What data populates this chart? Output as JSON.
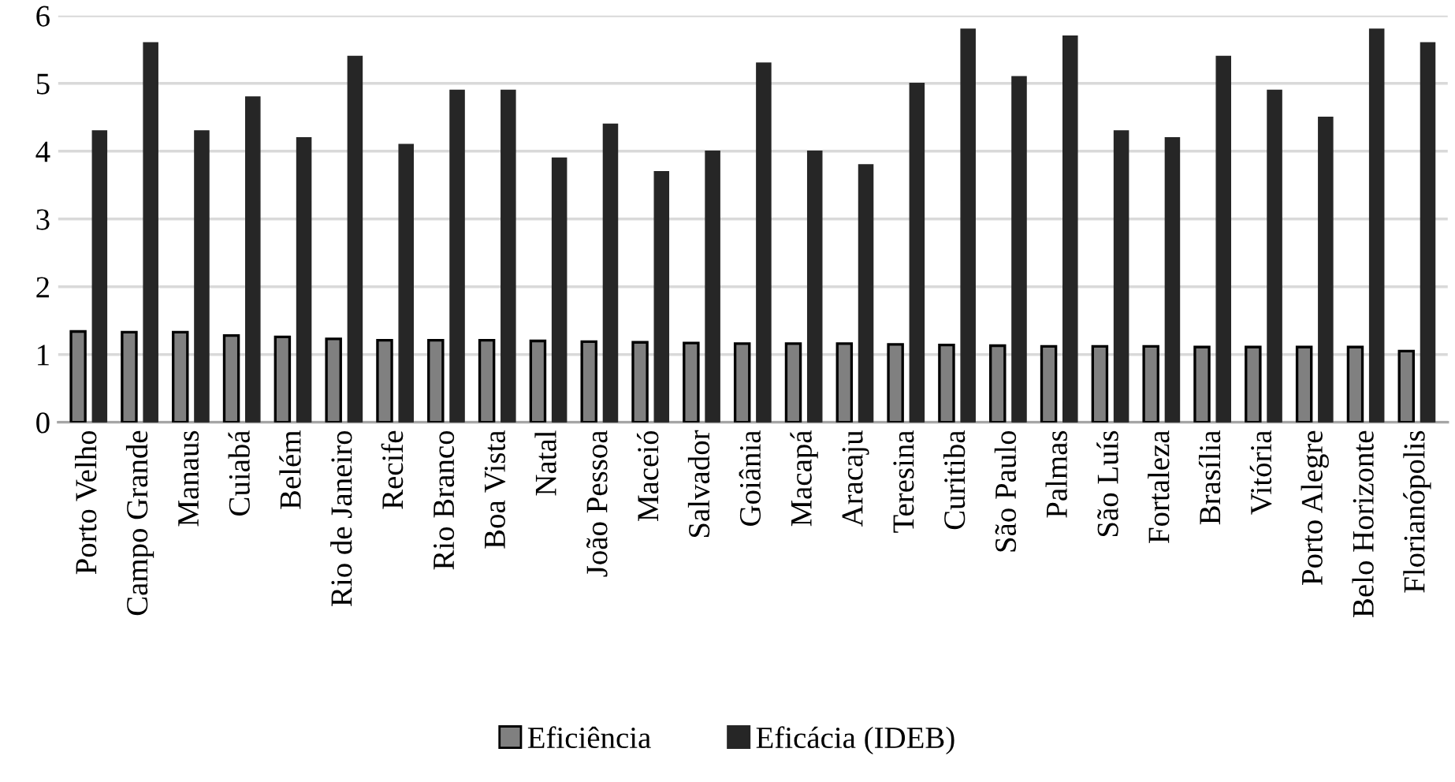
{
  "chart_data": {
    "type": "bar",
    "categories": [
      "Porto Velho",
      "Campo Grande",
      "Manaus",
      "Cuiabá",
      "Belém",
      "Rio de Janeiro",
      "Recife",
      "Rio Branco",
      "Boa Vista",
      "Natal",
      "João Pessoa",
      "Maceió",
      "Salvador",
      "Goiânia",
      "Macapá",
      "Aracaju",
      "Teresina",
      "Curitiba",
      "São Paulo",
      "Palmas",
      "São Luís",
      "Fortaleza",
      "Brasília",
      "Vitória",
      "Porto Alegre",
      "Belo Horizonte",
      "Florianópolis"
    ],
    "series": [
      {
        "name": "Eficiência",
        "color": "#808080",
        "values": [
          1.34,
          1.33,
          1.33,
          1.28,
          1.26,
          1.23,
          1.21,
          1.21,
          1.21,
          1.2,
          1.19,
          1.18,
          1.17,
          1.16,
          1.16,
          1.16,
          1.15,
          1.14,
          1.13,
          1.12,
          1.12,
          1.12,
          1.11,
          1.11,
          1.11,
          1.11,
          1.05
        ]
      },
      {
        "name": "Eficácia (IDEB)",
        "color": "#262626",
        "values": [
          4.3,
          5.6,
          4.3,
          4.8,
          4.2,
          5.4,
          4.1,
          4.9,
          4.9,
          3.9,
          4.4,
          3.7,
          4.0,
          5.3,
          4.0,
          3.8,
          5.0,
          5.8,
          5.1,
          5.7,
          4.3,
          4.2,
          5.4,
          4.9,
          4.5,
          5.8,
          5.6
        ]
      }
    ],
    "ylim": [
      0,
      6
    ],
    "yticks": [
      0,
      1,
      2,
      3,
      4,
      5,
      6
    ],
    "grid": "y",
    "legend": "bottom"
  }
}
